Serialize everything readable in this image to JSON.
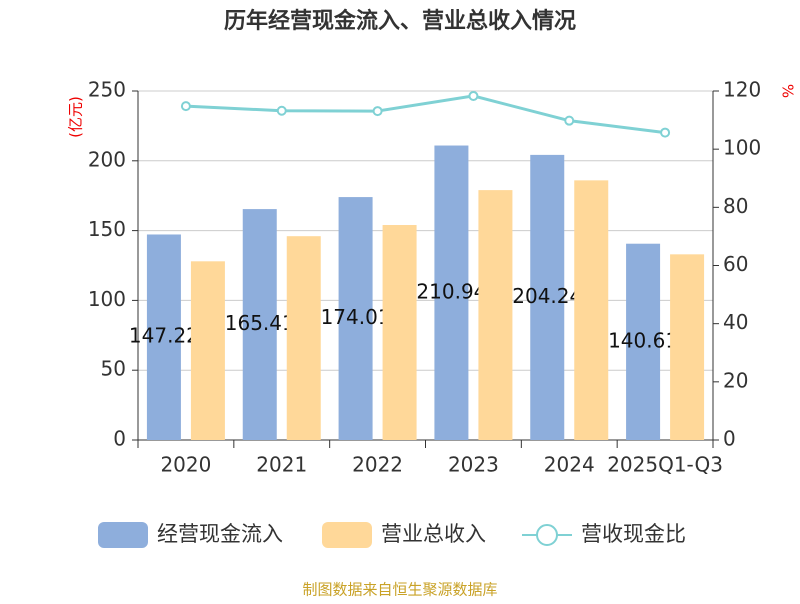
{
  "chart_data": {
    "type": "bar",
    "title": "历年经营现金流入、营业总收入情况",
    "y_label": "(亿元)",
    "y2_label": "%",
    "categories": [
      "2020",
      "2021",
      "2022",
      "2023",
      "2024",
      "2025Q1-Q3"
    ],
    "series": [
      {
        "name": "经营现金流入",
        "type": "bar",
        "color": "#8eaedc",
        "values": [
          147.22,
          165.41,
          174.01,
          210.94,
          204.24,
          140.61
        ]
      },
      {
        "name": "营业总收入",
        "type": "bar",
        "color": "#ffd899",
        "values": [
          128,
          146,
          154,
          179,
          186,
          133
        ]
      },
      {
        "name": "营收现金比",
        "type": "line",
        "axis": "y2",
        "color": "#7fd1d4",
        "values": [
          114.8,
          113.2,
          113.1,
          118.3,
          109.8,
          105.7
        ]
      }
    ],
    "ylim": [
      0,
      250
    ],
    "yticks": [
      0,
      50,
      100,
      150,
      200,
      250
    ],
    "y2lim": [
      0,
      120
    ],
    "y2ticks": [
      0,
      20,
      40,
      60,
      80,
      100,
      120
    ],
    "grid": true,
    "source": "制图数据来自恒生聚源数据库"
  }
}
